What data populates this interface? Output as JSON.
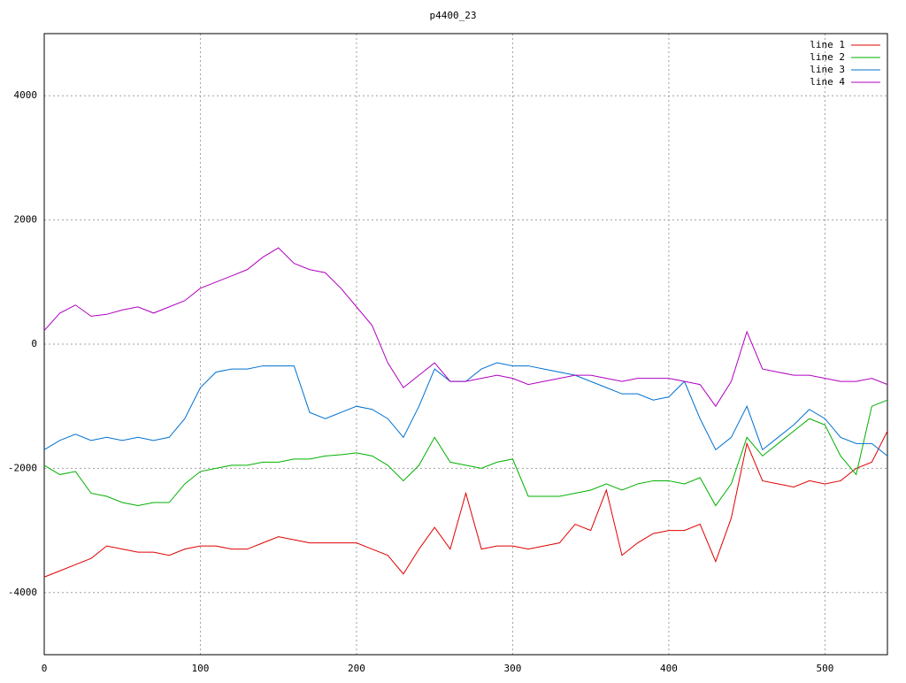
{
  "chart_data": {
    "type": "line",
    "title": "p4400_23",
    "x": [
      0,
      10,
      20,
      30,
      40,
      50,
      60,
      70,
      80,
      90,
      100,
      110,
      120,
      130,
      140,
      150,
      160,
      170,
      180,
      190,
      200,
      210,
      220,
      230,
      240,
      250,
      260,
      270,
      280,
      290,
      300,
      310,
      320,
      330,
      340,
      350,
      360,
      370,
      380,
      390,
      400,
      410,
      420,
      430,
      440,
      450,
      460,
      470,
      480,
      490,
      500,
      510,
      520,
      530,
      540
    ],
    "series": [
      {
        "name": "line 1",
        "color": "#e00000",
        "values": [
          -3750,
          -3650,
          -3550,
          -3450,
          -3250,
          -3300,
          -3350,
          -3350,
          -3400,
          -3300,
          -3250,
          -3250,
          -3300,
          -3300,
          -3200,
          -3100,
          -3150,
          -3200,
          -3200,
          -3200,
          -3200,
          -3300,
          -3400,
          -3700,
          -3300,
          -2950,
          -3300,
          -2400,
          -3300,
          -3250,
          -3250,
          -3300,
          -3250,
          -3200,
          -2900,
          -3000,
          -2350,
          -3400,
          -3200,
          -3050,
          -3000,
          -3000,
          -2900,
          -3500,
          -2800,
          -1600,
          -2200,
          -2250,
          -2300,
          -2200,
          -2250,
          -2200,
          -2000,
          -1900,
          -1400
        ]
      },
      {
        "name": "line 2",
        "color": "#00b000",
        "values": [
          -1950,
          -2100,
          -2050,
          -2400,
          -2450,
          -2550,
          -2600,
          -2550,
          -2550,
          -2250,
          -2050,
          -2000,
          -1950,
          -1950,
          -1900,
          -1900,
          -1850,
          -1850,
          -1800,
          -1780,
          -1750,
          -1800,
          -1950,
          -2200,
          -1950,
          -1500,
          -1900,
          -1950,
          -2000,
          -1900,
          -1850,
          -2450,
          -2450,
          -2450,
          -2400,
          -2350,
          -2250,
          -2350,
          -2250,
          -2200,
          -2200,
          -2250,
          -2150,
          -2600,
          -2250,
          -1500,
          -1800,
          -1600,
          -1400,
          -1200,
          -1300,
          -1800,
          -2100,
          -1000,
          -900
        ]
      },
      {
        "name": "line 3",
        "color": "#0070d0",
        "values": [
          -1700,
          -1550,
          -1450,
          -1550,
          -1500,
          -1550,
          -1500,
          -1550,
          -1500,
          -1200,
          -700,
          -450,
          -400,
          -400,
          -350,
          -350,
          -350,
          -1100,
          -1200,
          -1100,
          -1000,
          -1050,
          -1200,
          -1500,
          -1000,
          -400,
          -600,
          -600,
          -400,
          -300,
          -350,
          -350,
          -400,
          -450,
          -500,
          -600,
          -700,
          -800,
          -800,
          -900,
          -850,
          -600,
          -1200,
          -1700,
          -1500,
          -1000,
          -1700,
          -1500,
          -1300,
          -1050,
          -1200,
          -1500,
          -1600,
          -1600,
          -1800
        ]
      },
      {
        "name": "line 4",
        "color": "#b000c0",
        "values": [
          220,
          500,
          630,
          450,
          480,
          550,
          600,
          500,
          600,
          700,
          900,
          1000,
          1100,
          1200,
          1400,
          1550,
          1300,
          1200,
          1150,
          900,
          600,
          300,
          -300,
          -700,
          -500,
          -300,
          -600,
          -600,
          -550,
          -500,
          -550,
          -650,
          -600,
          -550,
          -500,
          -500,
          -550,
          -600,
          -550,
          -550,
          -550,
          -600,
          -650,
          -1000,
          -600,
          200,
          -400,
          -450,
          -500,
          -500,
          -550,
          -600,
          -600,
          -550,
          -650
        ]
      }
    ],
    "xlim": [
      0,
      540
    ],
    "ylim": [
      -5000,
      5000
    ],
    "xticks": [
      0,
      100,
      200,
      300,
      400,
      500
    ],
    "yticks": [
      -4000,
      -2000,
      0,
      2000,
      4000
    ],
    "grid": true,
    "legend": "top-right"
  }
}
